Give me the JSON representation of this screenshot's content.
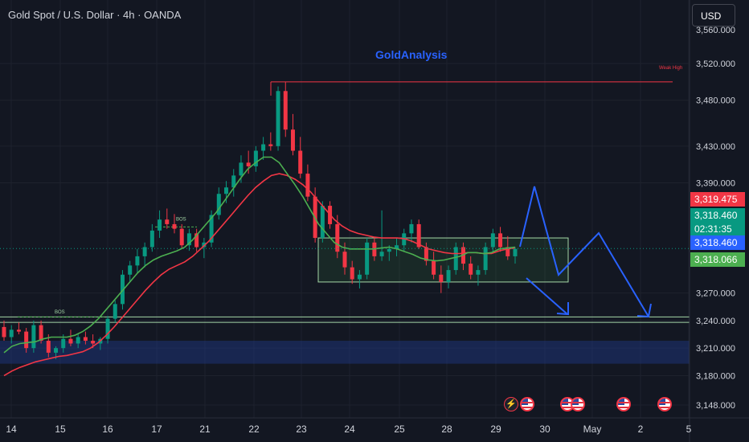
{
  "header": {
    "symbol_title": "Gold Spot / U.S. Dollar · 4h · OANDA",
    "currency_button": "USD"
  },
  "annotations": {
    "watermark": "GoldAnalysis",
    "weak_high": "Weak High",
    "bos_1": "BOS",
    "bos_2": "BOS"
  },
  "price_tags": {
    "red_tag": "3,319.475",
    "green_tag": "3,318.460",
    "countdown": "02:31:35",
    "blue_tag": "3,318.460",
    "green_tag_2": "3,318.066"
  },
  "colors": {
    "background": "#131722",
    "bull": "#089981",
    "bear": "#f23645",
    "ema_fast": "#4caf50",
    "ema_slow": "#f23645",
    "projection": "#2962ff",
    "zone": "#1e3a8a"
  },
  "chart_data": {
    "type": "candlestick",
    "title": "Gold Spot / U.S. Dollar · 4h · OANDA",
    "ylim": [
      3130,
      3560
    ],
    "y_ticks": [
      "3,520.000",
      "3,480.000",
      "3,430.000",
      "3,390.000",
      "3,270.000",
      "3,240.000",
      "3,210.000",
      "3,180.000",
      "3,148.000"
    ],
    "x_ticks": [
      "14",
      "15",
      "16",
      "17",
      "21",
      "22",
      "23",
      "24",
      "25",
      "28",
      "29",
      "30",
      "May",
      "2",
      "5"
    ],
    "candles": [
      [
        3233,
        3240,
        3218,
        3222
      ],
      [
        3222,
        3235,
        3215,
        3230
      ],
      [
        3230,
        3238,
        3225,
        3228
      ],
      [
        3228,
        3232,
        3205,
        3210
      ],
      [
        3210,
        3240,
        3205,
        3235
      ],
      [
        3235,
        3240,
        3215,
        3218
      ],
      [
        3218,
        3225,
        3200,
        3205
      ],
      [
        3205,
        3212,
        3198,
        3210
      ],
      [
        3210,
        3225,
        3205,
        3220
      ],
      [
        3220,
        3230,
        3212,
        3215
      ],
      [
        3215,
        3225,
        3210,
        3222
      ],
      [
        3222,
        3228,
        3214,
        3218
      ],
      [
        3218,
        3225,
        3210,
        3215
      ],
      [
        3215,
        3222,
        3208,
        3220
      ],
      [
        3220,
        3245,
        3215,
        3242
      ],
      [
        3242,
        3262,
        3238,
        3258
      ],
      [
        3258,
        3295,
        3252,
        3290
      ],
      [
        3290,
        3305,
        3282,
        3300
      ],
      [
        3300,
        3318,
        3292,
        3310
      ],
      [
        3310,
        3325,
        3298,
        3320
      ],
      [
        3320,
        3345,
        3315,
        3338
      ],
      [
        3338,
        3360,
        3330,
        3350
      ],
      [
        3350,
        3362,
        3340,
        3345
      ],
      [
        3345,
        3356,
        3335,
        3340
      ],
      [
        3340,
        3345,
        3318,
        3322
      ],
      [
        3322,
        3340,
        3316,
        3335
      ],
      [
        3335,
        3340,
        3315,
        3320
      ],
      [
        3320,
        3330,
        3308,
        3325
      ],
      [
        3325,
        3360,
        3320,
        3355
      ],
      [
        3355,
        3385,
        3350,
        3378
      ],
      [
        3378,
        3392,
        3368,
        3385
      ],
      [
        3385,
        3405,
        3375,
        3398
      ],
      [
        3398,
        3420,
        3390,
        3412
      ],
      [
        3412,
        3425,
        3400,
        3408
      ],
      [
        3408,
        3430,
        3402,
        3425
      ],
      [
        3425,
        3440,
        3415,
        3432
      ],
      [
        3432,
        3445,
        3425,
        3430
      ],
      [
        3430,
        3495,
        3425,
        3490
      ],
      [
        3490,
        3500,
        3440,
        3448
      ],
      [
        3448,
        3465,
        3420,
        3425
      ],
      [
        3425,
        3440,
        3395,
        3400
      ],
      [
        3400,
        3410,
        3370,
        3375
      ],
      [
        3375,
        3385,
        3325,
        3330
      ],
      [
        3330,
        3370,
        3325,
        3365
      ],
      [
        3365,
        3370,
        3340,
        3345
      ],
      [
        3345,
        3355,
        3308,
        3315
      ],
      [
        3315,
        3325,
        3290,
        3298
      ],
      [
        3298,
        3305,
        3280,
        3285
      ],
      [
        3285,
        3295,
        3275,
        3290
      ],
      [
        3290,
        3330,
        3285,
        3325
      ],
      [
        3325,
        3330,
        3305,
        3310
      ],
      [
        3310,
        3360,
        3305,
        3315
      ],
      [
        3315,
        3322,
        3305,
        3318
      ],
      [
        3318,
        3330,
        3310,
        3322
      ],
      [
        3322,
        3340,
        3315,
        3335
      ],
      [
        3335,
        3350,
        3325,
        3345
      ],
      [
        3345,
        3350,
        3318,
        3320
      ],
      [
        3320,
        3325,
        3300,
        3305
      ],
      [
        3305,
        3315,
        3285,
        3290
      ],
      [
        3290,
        3300,
        3270,
        3282
      ],
      [
        3282,
        3300,
        3275,
        3295
      ],
      [
        3295,
        3325,
        3290,
        3320
      ],
      [
        3320,
        3325,
        3295,
        3302
      ],
      [
        3302,
        3310,
        3285,
        3290
      ],
      [
        3290,
        3300,
        3278,
        3295
      ],
      [
        3295,
        3325,
        3290,
        3320
      ],
      [
        3320,
        3340,
        3315,
        3335
      ],
      [
        3335,
        3342,
        3315,
        3320
      ],
      [
        3320,
        3332,
        3306,
        3310
      ],
      [
        3310,
        3320,
        3302,
        3318
      ]
    ],
    "ema_fast": [
      3205,
      3212,
      3215,
      3216,
      3217,
      3220,
      3222,
      3222,
      3222,
      3224,
      3228,
      3234,
      3242,
      3252,
      3262,
      3272,
      3282,
      3292,
      3300,
      3306,
      3310,
      3313,
      3316,
      3320,
      3328,
      3338,
      3348,
      3358,
      3370,
      3382,
      3394,
      3405,
      3412,
      3418,
      3418,
      3412,
      3400,
      3388,
      3375,
      3360,
      3345,
      3335,
      3325,
      3320,
      3318,
      3318,
      3318,
      3318,
      3319,
      3320,
      3318,
      3315,
      3312,
      3308,
      3306,
      3305,
      3306,
      3308,
      3310,
      3314,
      3314,
      3313,
      3314,
      3318,
      3319,
      3320
    ],
    "ema_slow": [
      3180,
      3185,
      3189,
      3192,
      3195,
      3197,
      3199,
      3201,
      3202,
      3204,
      3206,
      3210,
      3216,
      3224,
      3233,
      3243,
      3253,
      3263,
      3273,
      3282,
      3290,
      3296,
      3300,
      3304,
      3310,
      3318,
      3326,
      3336,
      3346,
      3356,
      3366,
      3376,
      3385,
      3392,
      3398,
      3400,
      3398,
      3394,
      3388,
      3380,
      3370,
      3360,
      3350,
      3343,
      3338,
      3335,
      3333,
      3331,
      3330,
      3330,
      3330,
      3329,
      3326,
      3322,
      3318,
      3316,
      3314,
      3313,
      3313,
      3314,
      3314,
      3313,
      3313,
      3316,
      3318,
      3319
    ]
  }
}
